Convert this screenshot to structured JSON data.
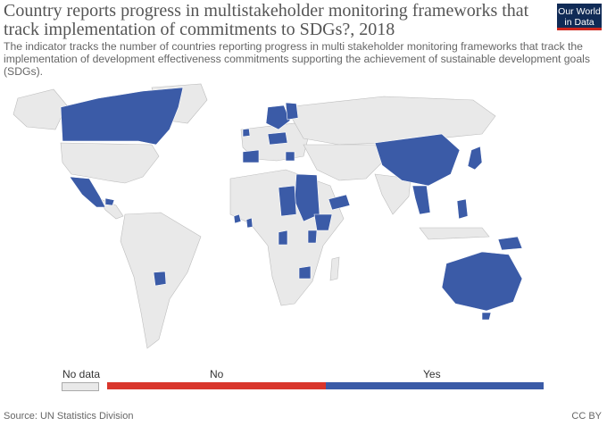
{
  "header": {
    "title": "Country reports progress in multistakeholder monitoring frameworks that track implementation of commitments to SDGs?, 2018",
    "subtitle": "The indicator tracks the number of countries reporting progress in multi stakeholder monitoring frameworks that track the implementation of development effectiveness commitments supporting the achievement of sustainable development goals (SDGs).",
    "logo_line1": "Our World",
    "logo_line2": "in Data"
  },
  "legend": {
    "nodata": "No data",
    "no": "No",
    "yes": "Yes"
  },
  "colors": {
    "yes": "#3b5ba7",
    "no": "#d9362c",
    "land": "#e9e9e9",
    "border": "#bdbdbd"
  },
  "footer": {
    "source": "Source: UN Statistics Division",
    "license": "CC BY"
  }
}
